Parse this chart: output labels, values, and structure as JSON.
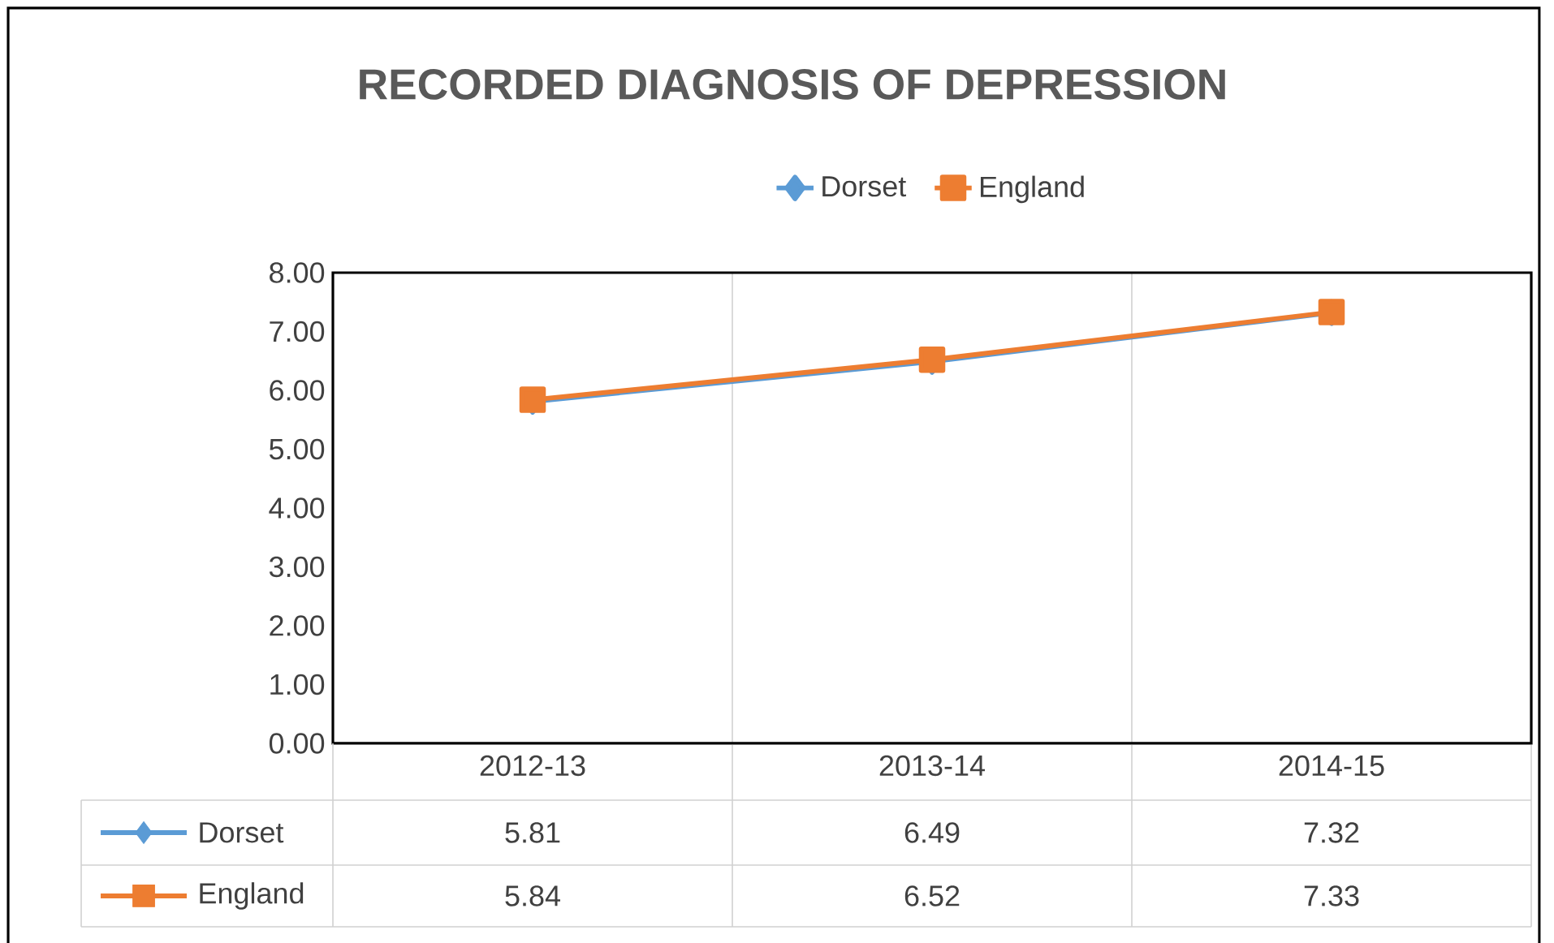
{
  "chart_data": {
    "type": "line",
    "title": "RECORDED  DIAGNOSIS  OF  DEPRESSION",
    "categories": [
      "2012-13",
      "2013-14",
      "2014-15"
    ],
    "series": [
      {
        "name": "Dorset",
        "color": "#5b9bd5",
        "marker": "diamond",
        "values": [
          5.81,
          6.49,
          7.32
        ]
      },
      {
        "name": "England",
        "color": "#ed7d31",
        "marker": "square",
        "values": [
          5.84,
          6.52,
          7.33
        ]
      }
    ],
    "ylim": [
      0,
      8
    ],
    "yticks": [
      {
        "value": 0,
        "label": "0.00"
      },
      {
        "value": 1,
        "label": "1.00"
      },
      {
        "value": 2,
        "label": "2.00"
      },
      {
        "value": 3,
        "label": "3.00"
      },
      {
        "value": 4,
        "label": "4.00"
      },
      {
        "value": 5,
        "label": "5.00"
      },
      {
        "value": 6,
        "label": "6.00"
      },
      {
        "value": 7,
        "label": "7.00"
      },
      {
        "value": 8,
        "label": "8.00"
      }
    ],
    "grid": "x",
    "legend": "top",
    "data_labels": true,
    "line_style": "solid"
  }
}
